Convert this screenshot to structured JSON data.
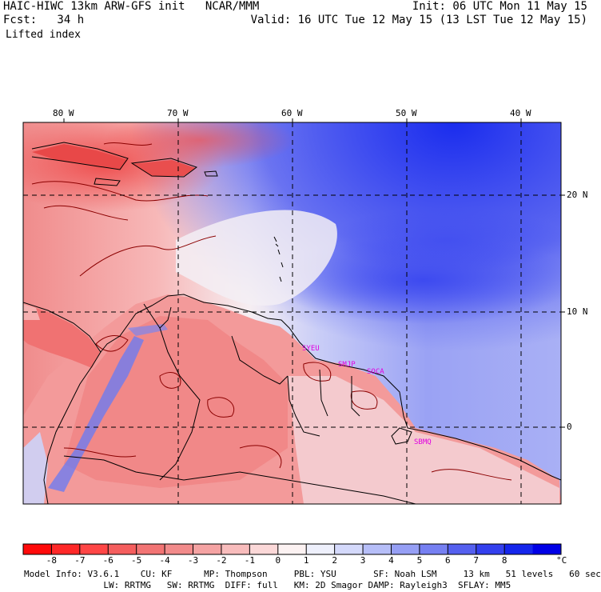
{
  "header": {
    "model_line": "HAIC-HIWC 13km ARW-GFS init   NCAR/MMM",
    "forecast_line": "Fcst:   34 h",
    "field_name": "Lifted index",
    "init_line": "Init: 06 UTC Mon 11 May 15",
    "valid_line": "Valid: 16 UTC Tue 12 May 15 (13 LST Tue 12 May 15)"
  },
  "map": {
    "lon_labels": [
      "80 W",
      "70 W",
      "60 W",
      "50 W",
      "40 W"
    ],
    "lat_labels": [
      "20 N",
      "10 N",
      "0"
    ],
    "stations": [
      "SYEU",
      "SMJP",
      "SOCA",
      "SBMQ"
    ],
    "colors": {
      "land_line": "#000000",
      "contour": "#8b0000",
      "station": "#e000e0",
      "grid": "#000000"
    }
  },
  "colorbar": {
    "labels": [
      "-8",
      "-7",
      "-6",
      "-5",
      "-4",
      "-3",
      "-2",
      "-1",
      "0",
      "1",
      "2",
      "3",
      "4",
      "5",
      "6",
      "7",
      "8"
    ],
    "unit": "°C",
    "colors": [
      "#ff0a0a",
      "#ff2828",
      "#ff4646",
      "#f55e5e",
      "#f27474",
      "#f28b8b",
      "#f5a3a3",
      "#f8bcbc",
      "#fbd8d8",
      "#fcf2f2",
      "#eef0fc",
      "#d4d9fb",
      "#b6bef8",
      "#969ff5",
      "#7680f2",
      "#5560ef",
      "#3440ee",
      "#1526ec",
      "#0000e6"
    ]
  },
  "model_info": {
    "line1": "Model Info: V3.6.1    CU: KF      MP: Thompson     PBL: YSU       SF: Noah LSM     13 km   51 levels   60 sec",
    "line2": "               LW: RRTMG   SW: RRTMG  DIFF: full   KM: 2D Smagor DAMP: Rayleigh3  SFLAY: MM5"
  }
}
